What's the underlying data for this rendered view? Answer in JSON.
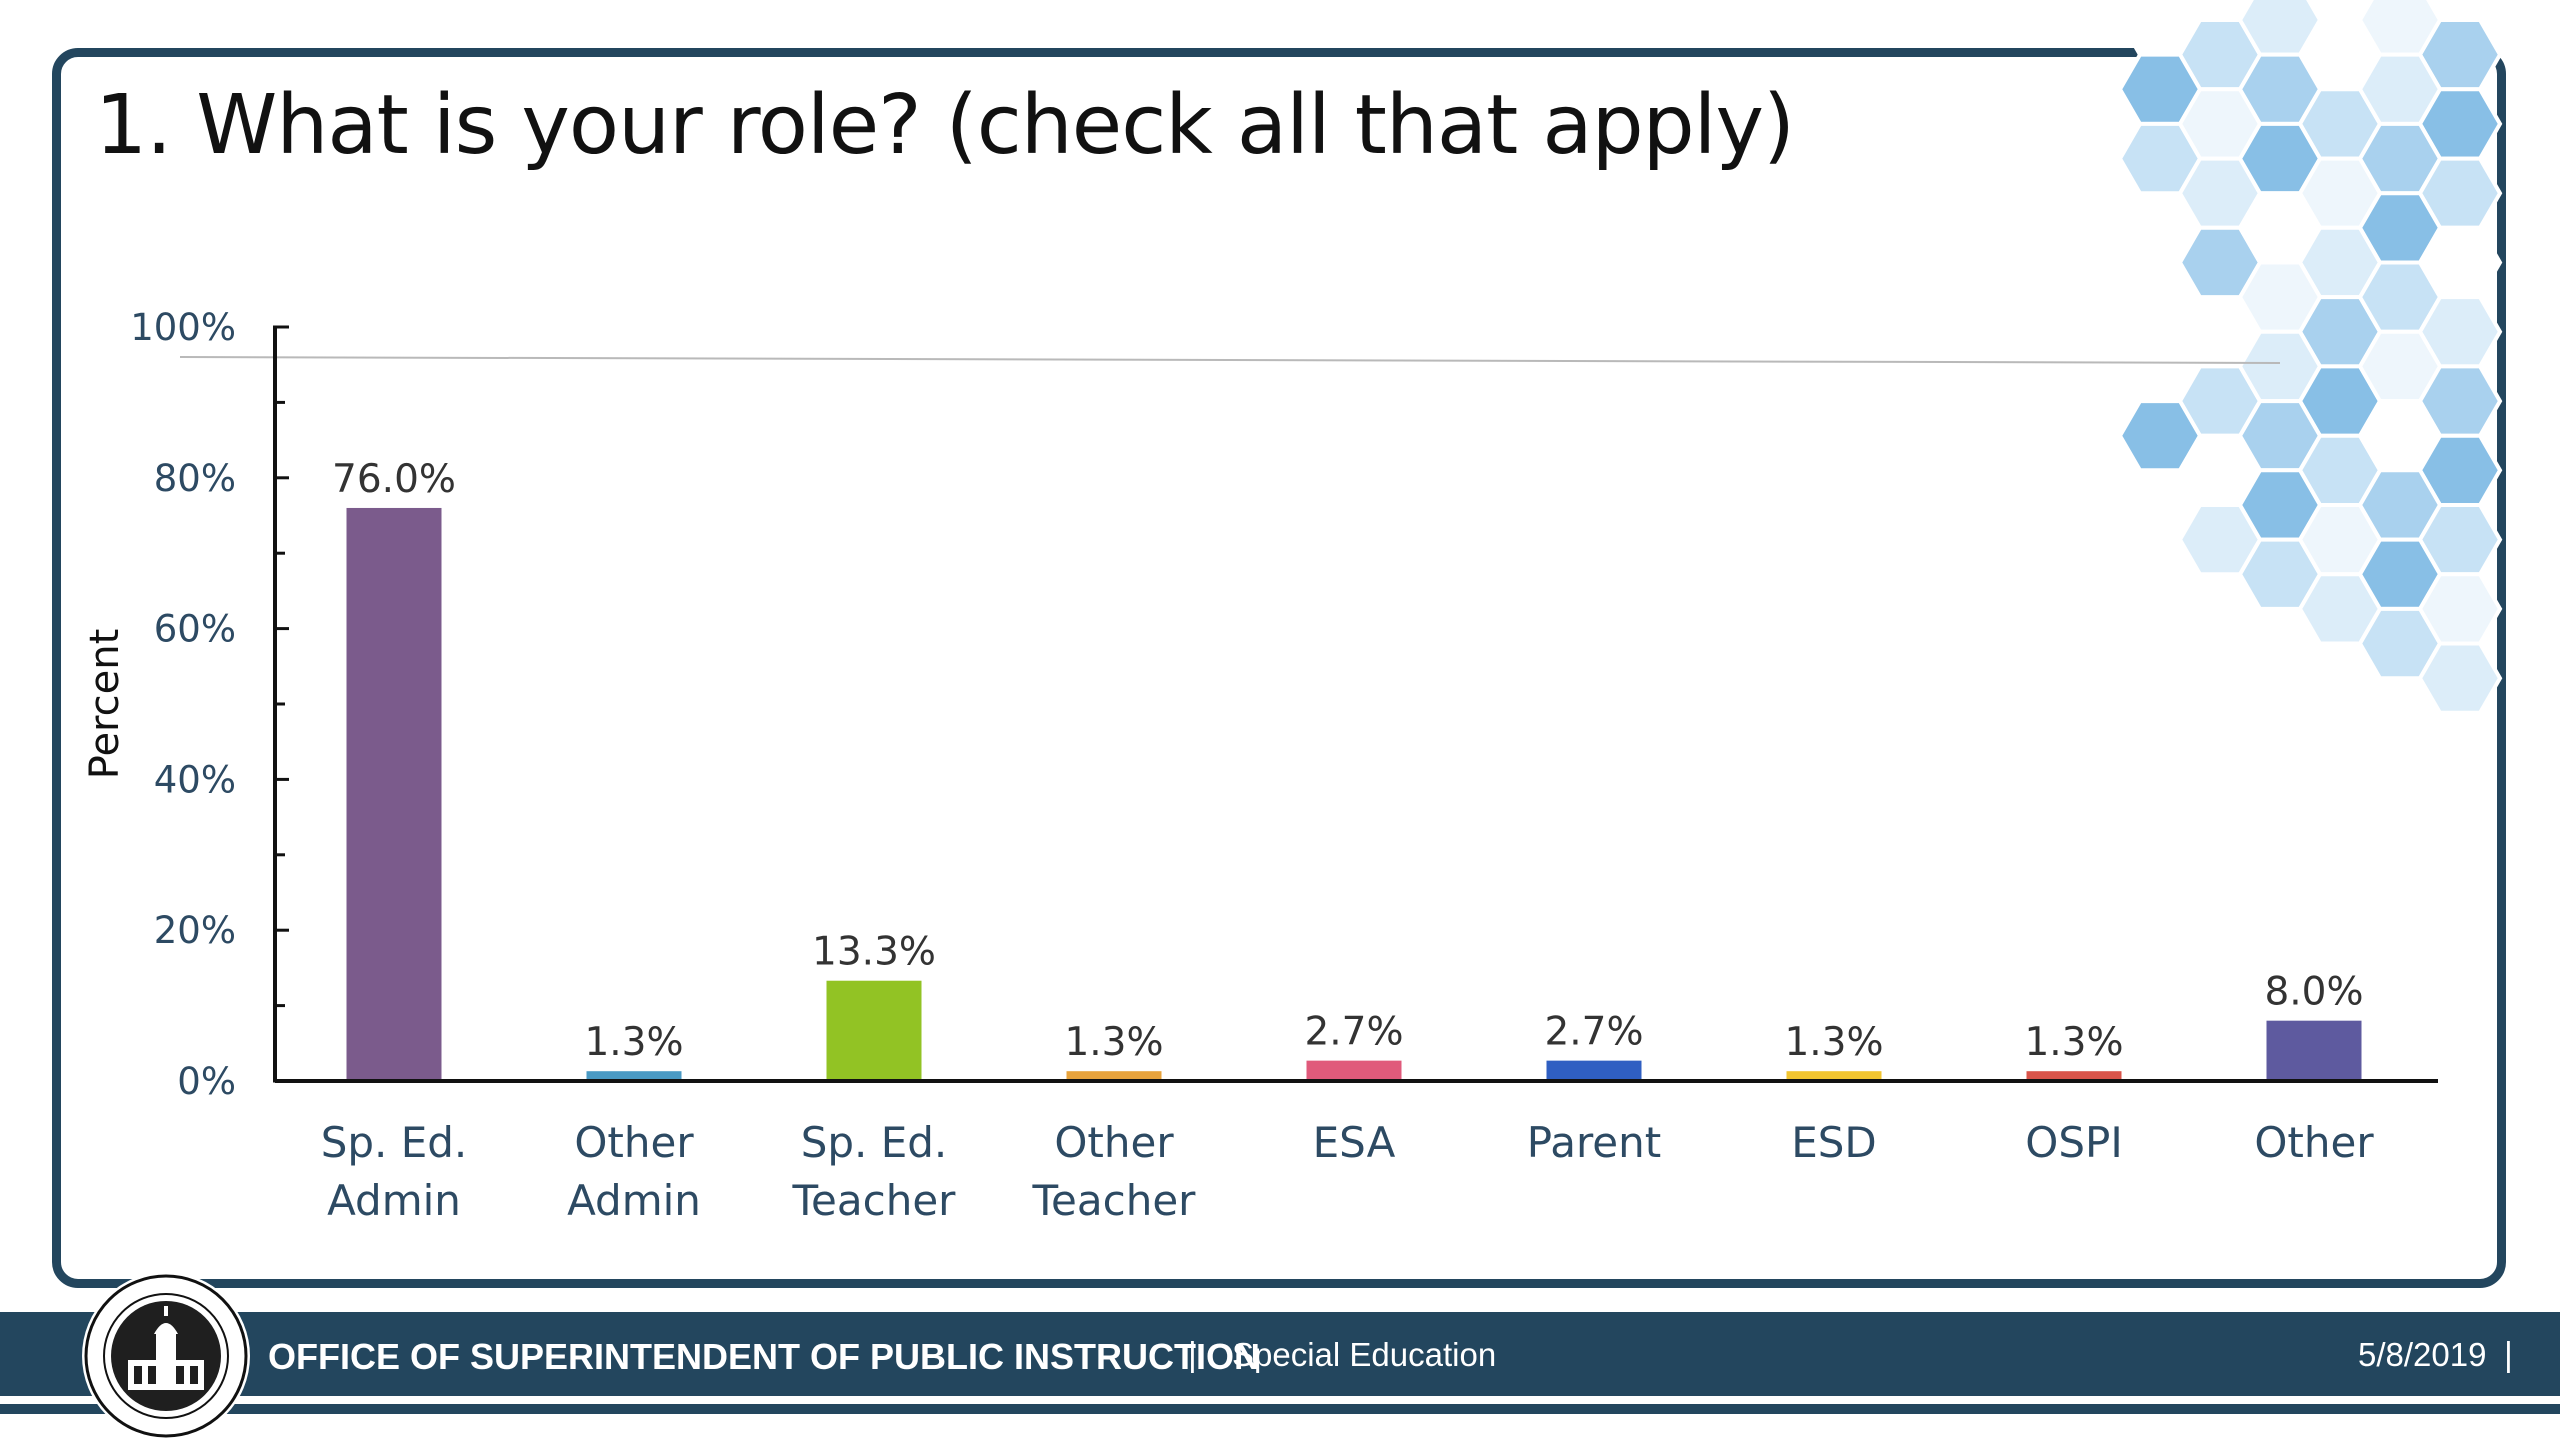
{
  "slide": {
    "title": "1. What is your role? (check all that apply)"
  },
  "chart_data": {
    "type": "bar",
    "title": "1. What is your role? (check all that apply)",
    "xlabel": "",
    "ylabel": "Percent",
    "ylim": [
      0,
      100
    ],
    "y_ticks": [
      "0%",
      "20%",
      "40%",
      "60%",
      "80%",
      "100%"
    ],
    "categories": [
      [
        "Sp. Ed.",
        "Admin"
      ],
      [
        "Other",
        "Admin"
      ],
      [
        "Sp. Ed.",
        "Teacher"
      ],
      [
        "Other",
        "Teacher"
      ],
      [
        "ESA"
      ],
      [
        "Parent"
      ],
      [
        "ESD"
      ],
      [
        "OSPI"
      ],
      [
        "Other"
      ]
    ],
    "values": [
      76.0,
      1.3,
      13.3,
      1.3,
      2.7,
      2.7,
      1.3,
      1.3,
      8.0
    ],
    "value_labels": [
      "76.0%",
      "1.3%",
      "13.3%",
      "1.3%",
      "2.7%",
      "2.7%",
      "1.3%",
      "1.3%",
      "8.0%"
    ],
    "colors": [
      "#7b5b8c",
      "#4a9ac4",
      "#92c324",
      "#e8a33c",
      "#e05a7b",
      "#2f5fc2",
      "#f2c531",
      "#d9544a",
      "#5e5a9f"
    ],
    "grid": false,
    "legend": "none"
  },
  "footer": {
    "org": "OFFICE OF SUPERINTENDENT OF PUBLIC INSTRUCTION",
    "separator": "|",
    "department": "Special Education",
    "date": "5/8/2019",
    "date_separator": "|"
  },
  "seal": {
    "icon": "ospi-seal-icon"
  },
  "decoration": {
    "icon": "hexagon-pattern-icon",
    "palette": [
      "#a9d1ee",
      "#c7e2f5",
      "#dcedf9",
      "#88bfe6",
      "#eef6fc"
    ]
  }
}
